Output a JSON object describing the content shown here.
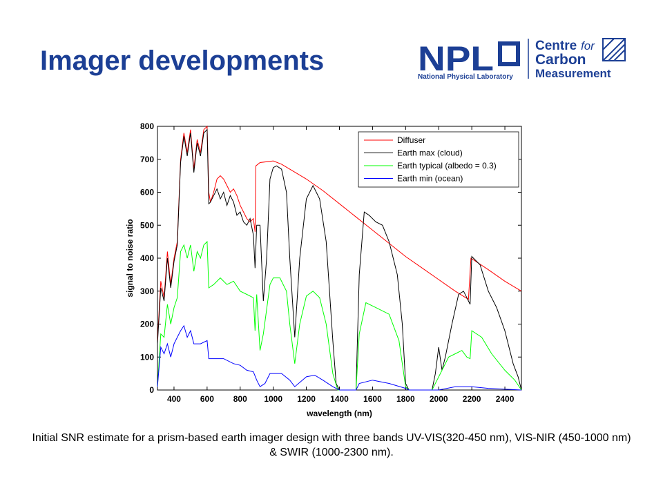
{
  "title": "Imager developments",
  "logo": {
    "npl": "NPL",
    "npl_full": "National Physical Laboratory",
    "centre_line1": "Centre",
    "centre_line1b": "for",
    "centre_line2": "Carbon",
    "centre_line3": "Measurement"
  },
  "chart_data": {
    "type": "line",
    "xlabel": "wavelength (nm)",
    "ylabel": "signal to noise ratio",
    "xlim": [
      300,
      2500
    ],
    "ylim": [
      0,
      800
    ],
    "xticks": [
      400,
      600,
      800,
      1000,
      1200,
      1400,
      1600,
      1800,
      2000,
      2200,
      2400
    ],
    "yticks": [
      0,
      100,
      200,
      300,
      400,
      500,
      600,
      700,
      800
    ],
    "grid": false,
    "legend": "upper right",
    "series": [
      {
        "name": "Diffuser",
        "color": "#ff0000",
        "x": [
          300,
          320,
          340,
          360,
          380,
          400,
          420,
          440,
          460,
          480,
          500,
          520,
          540,
          560,
          580,
          600,
          610,
          620,
          640,
          660,
          680,
          700,
          720,
          740,
          760,
          780,
          800,
          820,
          840,
          860,
          880,
          890,
          895,
          920,
          1000,
          1050,
          1100,
          1200,
          1300,
          1400,
          1500,
          1600,
          1700,
          1800,
          1900,
          2000,
          2100,
          2180,
          2195,
          2300,
          2400,
          2500
        ],
        "values": [
          150,
          330,
          280,
          420,
          320,
          400,
          450,
          700,
          780,
          720,
          790,
          670,
          760,
          720,
          790,
          800,
          600,
          570,
          600,
          640,
          650,
          640,
          620,
          600,
          610,
          590,
          560,
          540,
          520,
          510,
          520,
          480,
          680,
          690,
          695,
          685,
          670,
          640,
          605,
          565,
          525,
          485,
          445,
          405,
          370,
          335,
          300,
          275,
          400,
          365,
          330,
          300
        ]
      },
      {
        "name": "Earth max (cloud)",
        "color": "#000000",
        "x": [
          300,
          320,
          340,
          360,
          380,
          400,
          420,
          440,
          460,
          480,
          500,
          520,
          540,
          560,
          580,
          600,
          610,
          620,
          640,
          660,
          680,
          700,
          720,
          740,
          760,
          780,
          800,
          820,
          840,
          860,
          880,
          890,
          900,
          920,
          940,
          960,
          980,
          1000,
          1020,
          1050,
          1080,
          1100,
          1130,
          1160,
          1200,
          1240,
          1280,
          1320,
          1360,
          1380,
          1400,
          1500,
          1520,
          1550,
          1580,
          1620,
          1660,
          1700,
          1750,
          1780,
          1800,
          1820,
          1960,
          1980,
          2000,
          2020,
          2040,
          2080,
          2120,
          2150,
          2170,
          2190,
          2200,
          2250,
          2300,
          2350,
          2400,
          2450,
          2480,
          2500
        ],
        "values": [
          140,
          310,
          270,
          400,
          310,
          390,
          440,
          690,
          770,
          710,
          780,
          660,
          750,
          710,
          780,
          790,
          565,
          570,
          590,
          610,
          580,
          600,
          560,
          590,
          570,
          530,
          540,
          510,
          500,
          520,
          470,
          370,
          500,
          500,
          270,
          400,
          640,
          675,
          680,
          670,
          600,
          400,
          160,
          400,
          580,
          620,
          580,
          450,
          150,
          20,
          0,
          0,
          350,
          540,
          530,
          510,
          500,
          450,
          350,
          200,
          20,
          0,
          0,
          50,
          130,
          60,
          100,
          200,
          290,
          300,
          280,
          260,
          405,
          380,
          300,
          250,
          180,
          80,
          40,
          0
        ]
      },
      {
        "name": "Earth typical (albedo = 0.3)",
        "color": "#00ff00",
        "x": [
          300,
          320,
          340,
          360,
          380,
          400,
          420,
          440,
          460,
          480,
          500,
          520,
          540,
          560,
          580,
          600,
          610,
          640,
          680,
          720,
          760,
          800,
          840,
          880,
          890,
          900,
          920,
          940,
          980,
          1000,
          1040,
          1080,
          1100,
          1130,
          1160,
          1200,
          1240,
          1280,
          1320,
          1360,
          1390,
          1500,
          1520,
          1560,
          1620,
          1700,
          1760,
          1800,
          1820,
          1960,
          1990,
          2020,
          2060,
          2100,
          2140,
          2170,
          2190,
          2200,
          2260,
          2320,
          2400,
          2460,
          2500
        ],
        "values": [
          10,
          170,
          160,
          260,
          200,
          250,
          280,
          420,
          440,
          400,
          440,
          360,
          420,
          400,
          440,
          450,
          310,
          320,
          340,
          320,
          330,
          300,
          290,
          280,
          180,
          290,
          120,
          170,
          320,
          340,
          340,
          300,
          200,
          80,
          200,
          285,
          300,
          280,
          200,
          50,
          0,
          0,
          170,
          265,
          250,
          230,
          150,
          10,
          0,
          0,
          30,
          60,
          100,
          110,
          120,
          100,
          95,
          180,
          160,
          110,
          60,
          30,
          0
        ]
      },
      {
        "name": "Earth min (ocean)",
        "color": "#0000ff",
        "x": [
          300,
          320,
          340,
          360,
          380,
          400,
          420,
          440,
          460,
          480,
          500,
          520,
          560,
          600,
          610,
          700,
          760,
          800,
          840,
          880,
          900,
          920,
          950,
          980,
          1050,
          1100,
          1130,
          1200,
          1250,
          1300,
          1360,
          1400,
          1500,
          1520,
          1600,
          1700,
          1800,
          1820,
          2000,
          2100,
          2200,
          2300,
          2500
        ],
        "values": [
          10,
          130,
          110,
          140,
          100,
          140,
          160,
          180,
          195,
          160,
          180,
          140,
          140,
          150,
          95,
          95,
          80,
          75,
          60,
          55,
          30,
          10,
          20,
          50,
          50,
          30,
          10,
          40,
          45,
          30,
          10,
          0,
          0,
          20,
          30,
          20,
          5,
          0,
          0,
          10,
          10,
          5,
          0
        ]
      }
    ]
  },
  "caption": "Initial SNR estimate for a prism-based earth imager design with three bands UV-VIS(320-450 nm), VIS-NIR (450-1000 nm) & SWIR (1000-2300 nm)."
}
